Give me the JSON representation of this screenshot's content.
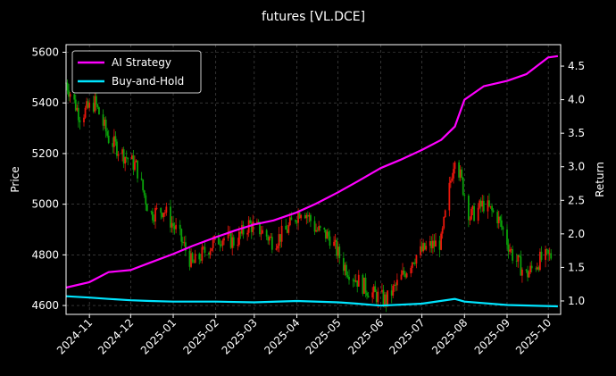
{
  "chart_data": {
    "type": "line",
    "title": "futures [VL.DCE]",
    "xlabel": "",
    "ylabel_left": "Price",
    "ylabel_right": "Return",
    "x_ticks": [
      "2024-11",
      "2024-12",
      "2025-01",
      "2025-02",
      "2025-03",
      "2025-04",
      "2025-05",
      "2025-06",
      "2025-07",
      "2025-08",
      "2025-09",
      "2025-10"
    ],
    "x_range": [
      "2024-10-15",
      "2025-10-10"
    ],
    "ylim_left": [
      4565,
      5630
    ],
    "yticks_left": [
      4600,
      4800,
      5000,
      5200,
      5400,
      5600
    ],
    "ylim_right": [
      0.8,
      4.82
    ],
    "yticks_right": [
      "1.0",
      "1.5",
      "2.0",
      "2.5",
      "3.0",
      "3.5",
      "4.0",
      "4.5"
    ],
    "grid": true,
    "legend": {
      "placement": "top-left",
      "entries": [
        "AI Strategy",
        "Buy-and-Hold"
      ]
    },
    "colors": {
      "ai": "#ff00ff",
      "bh": "#00e5ff",
      "up": "#e8160c",
      "down": "#0aa20a",
      "grid": "#555555",
      "bg": "#000000",
      "axis": "#ffffff"
    },
    "price_series": {
      "name": "VL.DCE close",
      "dates": [
        "2024-10-15",
        "2024-10-25",
        "2024-11-05",
        "2024-11-15",
        "2024-11-25",
        "2024-12-05",
        "2024-12-15",
        "2024-12-25",
        "2025-01-05",
        "2025-01-15",
        "2025-01-25",
        "2025-02-05",
        "2025-02-15",
        "2025-02-25",
        "2025-03-05",
        "2025-03-15",
        "2025-03-25",
        "2025-04-05",
        "2025-04-15",
        "2025-04-25",
        "2025-05-05",
        "2025-05-15",
        "2025-05-25",
        "2025-06-05",
        "2025-06-15",
        "2025-06-25",
        "2025-07-05",
        "2025-07-15",
        "2025-07-25",
        "2025-08-05",
        "2025-08-15",
        "2025-08-25",
        "2025-09-05",
        "2025-09-15",
        "2025-09-25",
        "2025-10-05"
      ],
      "values": [
        5480,
        5350,
        5400,
        5260,
        5200,
        5150,
        4960,
        4980,
        4880,
        4760,
        4820,
        4870,
        4850,
        4920,
        4900,
        4850,
        4900,
        4990,
        4900,
        4870,
        4760,
        4700,
        4650,
        4620,
        4700,
        4790,
        4830,
        4850,
        5200,
        4950,
        5000,
        4950,
        4800,
        4720,
        4780,
        4800
      ]
    },
    "series": [
      {
        "name": "AI Strategy",
        "x": [
          "2024-10-15",
          "2024-11-01",
          "2024-11-15",
          "2024-12-01",
          "2024-12-15",
          "2025-01-01",
          "2025-01-15",
          "2025-02-01",
          "2025-02-15",
          "2025-03-01",
          "2025-03-15",
          "2025-04-01",
          "2025-04-15",
          "2025-05-01",
          "2025-05-15",
          "2025-06-01",
          "2025-06-15",
          "2025-07-01",
          "2025-07-15",
          "2025-07-25",
          "2025-08-01",
          "2025-08-15",
          "2025-09-01",
          "2025-09-15",
          "2025-10-01",
          "2025-10-08"
        ],
        "values": [
          1.2,
          1.28,
          1.43,
          1.46,
          1.57,
          1.7,
          1.82,
          1.95,
          2.05,
          2.14,
          2.2,
          2.32,
          2.45,
          2.62,
          2.78,
          2.98,
          3.1,
          3.25,
          3.4,
          3.6,
          4.0,
          4.2,
          4.28,
          4.38,
          4.63,
          4.65
        ]
      },
      {
        "name": "Buy-and-Hold",
        "x": [
          "2024-10-15",
          "2024-11-01",
          "2024-11-15",
          "2024-12-01",
          "2024-12-15",
          "2025-01-01",
          "2025-02-01",
          "2025-03-01",
          "2025-04-01",
          "2025-05-01",
          "2025-05-15",
          "2025-06-01",
          "2025-07-01",
          "2025-07-25",
          "2025-08-01",
          "2025-09-01",
          "2025-10-08"
        ],
        "values": [
          1.07,
          1.05,
          1.03,
          1.01,
          1.0,
          0.99,
          0.99,
          0.98,
          1.0,
          0.98,
          0.96,
          0.93,
          0.96,
          1.03,
          0.99,
          0.94,
          0.92
        ]
      }
    ]
  }
}
